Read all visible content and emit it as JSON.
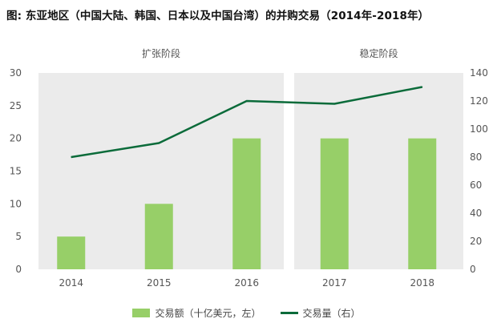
{
  "title": "图: 东亚地区（中国大陆、韩国、日本以及中国台湾）的并购交易（2014年-2018年）",
  "colors": {
    "bar": "#97cf68",
    "line": "#0b6b3a",
    "panel": "#ebebeb",
    "text": "#555555"
  },
  "chart_data": {
    "type": "bar",
    "title": "图: 东亚地区（中国大陆、韩国、日本以及中国台湾）的并购交易（2014年-2018年）",
    "categories": [
      "2014",
      "2015",
      "2016",
      "2017",
      "2018"
    ],
    "phases": [
      {
        "label": "扩张阶段",
        "categories": [
          "2014",
          "2015",
          "2016"
        ]
      },
      {
        "label": "稳定阶段",
        "categories": [
          "2017",
          "2018"
        ]
      }
    ],
    "series": [
      {
        "name": "交易额（十亿美元，左）",
        "type": "bar",
        "axis": "left",
        "values": [
          5,
          10,
          20,
          20,
          20
        ]
      },
      {
        "name": "交易量（右）",
        "type": "line",
        "axis": "right",
        "values": [
          80,
          90,
          120,
          118,
          130
        ]
      }
    ],
    "ylim_left": [
      0,
      30
    ],
    "yticks_left": [
      "0",
      "5",
      "10",
      "15",
      "20",
      "25",
      "30"
    ],
    "ylim_right": [
      0,
      140
    ],
    "yticks_right": [
      "0",
      "20",
      "40",
      "60",
      "80",
      "100",
      "120",
      "140"
    ],
    "grid": false,
    "legend_position": "bottom"
  }
}
